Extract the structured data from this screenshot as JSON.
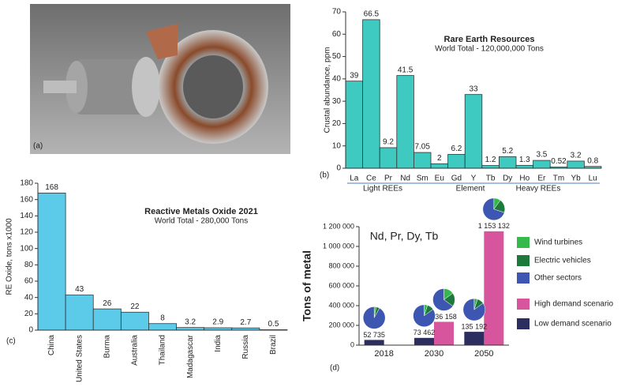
{
  "image_panel": {
    "label": "(a)"
  },
  "chart_data": [
    {
      "type": "bar",
      "panel_label": "(b)",
      "title": "Rare Earth Resources",
      "subtitle": "World Total - 120,000,000 Tons",
      "y_label": "Crustal abundance, ppm",
      "x_label": "Element",
      "group_labels": [
        "Light REEs",
        "Heavy REEs"
      ],
      "categories": [
        "La",
        "Ce",
        "Pr",
        "Nd",
        "Sm",
        "Eu",
        "Gd",
        "Y",
        "Tb",
        "Dy",
        "Ho",
        "Er",
        "Tm",
        "Yb",
        "Lu"
      ],
      "values": [
        39,
        66.5,
        9.2,
        41.5,
        7.05,
        2,
        6.2,
        33,
        1.2,
        5.2,
        1.3,
        3.5,
        0.52,
        3.2,
        0.8
      ],
      "color": "#3ec9c1",
      "ylim": [
        0,
        70
      ],
      "yticks": [
        0,
        10,
        20,
        30,
        40,
        50,
        60,
        70
      ]
    },
    {
      "type": "bar",
      "panel_label": "(c)",
      "title": "Reactive Metals Oxide 2021",
      "subtitle": "World Total - 280,000 Tons",
      "y_label": "RE Oxide, tons x1000",
      "categories": [
        "China",
        "United States",
        "Burma",
        "Australia",
        "Thailand",
        "Madagascar",
        "India",
        "Russia",
        "Brazil"
      ],
      "values": [
        168,
        43,
        26,
        22,
        8,
        3.2,
        2.9,
        2.7,
        0.5
      ],
      "color": "#5ccbe9",
      "ylim": [
        0,
        180
      ],
      "yticks": [
        0,
        20,
        40,
        60,
        80,
        100,
        120,
        140,
        160,
        180
      ]
    },
    {
      "type": "grouped_bar",
      "panel_label": "(d)",
      "title": "Nd, Pr, Dy, Tb",
      "y_label": "Tons of metal",
      "categories": [
        "2018",
        "2030",
        "2050"
      ],
      "pie_sectors": [
        {
          "name": "Wind turbines",
          "color": "#35b84c"
        },
        {
          "name": "Electric vehicles",
          "color": "#1e7a3c"
        },
        {
          "name": "Other sectors",
          "color": "#3c56b2"
        }
      ],
      "series": [
        {
          "name": "High demand scenario",
          "color": "#d7559c",
          "values": [
            null,
            236158,
            1153132
          ],
          "value_labels": [
            null,
            "236 158",
            "1 153 132"
          ],
          "pie_shares": [
            null,
            [
              15,
              20,
              65
            ],
            [
              10,
              20,
              70
            ]
          ]
        },
        {
          "name": "Low demand scenario",
          "color": "#2c2e60",
          "values": [
            52735,
            73462,
            135192
          ],
          "value_labels": [
            "52 735",
            "73 462",
            "135 192"
          ],
          "pie_shares": [
            [
              3,
              5,
              92
            ],
            [
              5,
              10,
              85
            ],
            [
              5,
              10,
              85
            ]
          ]
        }
      ],
      "ylim": [
        0,
        1200000
      ],
      "yticks": [
        0,
        {
          "value": 200000,
          "label": "200 000"
        },
        {
          "value": 400000,
          "label": "400 000"
        },
        {
          "value": 600000,
          "label": "600 000"
        },
        {
          "value": 800000,
          "label": "800 000"
        },
        {
          "value": 1000000,
          "label": "1 000 000"
        },
        {
          "value": 1200000,
          "label": "1 200 000"
        }
      ]
    }
  ]
}
